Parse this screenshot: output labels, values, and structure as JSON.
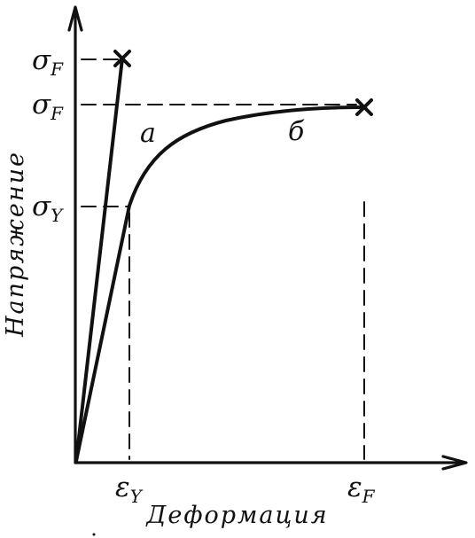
{
  "y_axis": {
    "title": "Напряжение",
    "ticks": [
      {
        "symbol": "σ",
        "subscript": "F"
      },
      {
        "symbol": "σ",
        "subscript": "F"
      },
      {
        "symbol": "σ",
        "subscript": "Y"
      }
    ]
  },
  "x_axis": {
    "title": "Деформация",
    "ticks": [
      {
        "symbol": "ε",
        "subscript": "Y"
      },
      {
        "symbol": "ε",
        "subscript": "F"
      }
    ]
  },
  "curves": {
    "a_label": "a",
    "b_label": "б"
  },
  "colors": {
    "ink": "#111111",
    "background": "#ffffff"
  }
}
